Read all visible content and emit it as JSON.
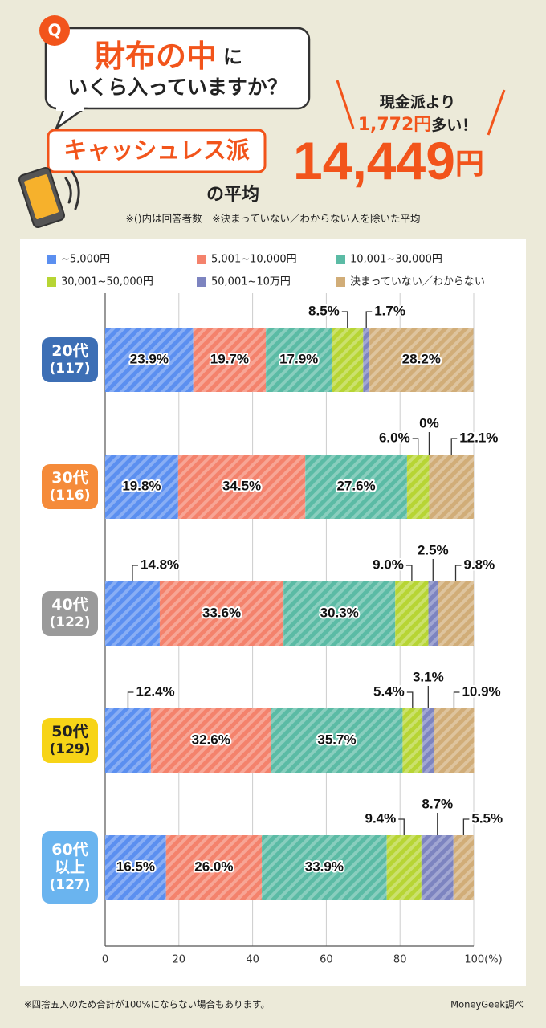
{
  "header": {
    "q": "Q",
    "question_highlight": "財布の中",
    "question_rest": "に",
    "question_line2": "いくら入っていますか？",
    "badge": "キャッシュレス派",
    "badge_sub": "の平均",
    "compare_line1": "現金派より",
    "compare_amount": "1,772円",
    "compare_rest": "多い！",
    "average": "14,449",
    "average_unit": "円",
    "note": "※()内は回答者数　※決まっていない／わからない人を除いた平均"
  },
  "chart_data": {
    "type": "stacked-bar-horizontal",
    "categories": [
      "20代",
      "30代",
      "40代",
      "50代",
      "60代以上"
    ],
    "respondents": [
      "(117)",
      "(116)",
      "(122)",
      "(129)",
      "(127)"
    ],
    "category_colors": [
      "#3d6fb5",
      "#f58b3a",
      "#9a9a9a",
      "#f7d417",
      "#6ab4ef"
    ],
    "series": [
      {
        "name": "~5,000円",
        "color": "#5b8ff0",
        "values": [
          23.9,
          19.8,
          14.8,
          12.4,
          16.5
        ],
        "value_labels": [
          "23.9%",
          "19.8%",
          "14.8%",
          "12.4%",
          "16.5%"
        ]
      },
      {
        "name": "5,001~10,000円",
        "color": "#f4826c",
        "values": [
          19.7,
          34.5,
          33.6,
          32.6,
          26.0
        ],
        "value_labels": [
          "19.7%",
          "34.5%",
          "33.6%",
          "32.6%",
          "26.0%"
        ]
      },
      {
        "name": "10,001~30,000円",
        "color": "#5bbba5",
        "values": [
          17.9,
          27.6,
          30.3,
          35.7,
          33.9
        ],
        "value_labels": [
          "17.9%",
          "27.6%",
          "30.3%",
          "35.7%",
          "33.9%"
        ]
      },
      {
        "name": "30,001~50,000円",
        "color": "#b7d534",
        "values": [
          8.5,
          6.0,
          9.0,
          5.4,
          9.4
        ],
        "value_labels": [
          "8.5%",
          "6.0%",
          "9.0%",
          "5.4%",
          "9.4%"
        ]
      },
      {
        "name": "50,001~10万円",
        "color": "#7d84c0",
        "values": [
          1.7,
          0,
          2.5,
          3.1,
          8.7
        ],
        "value_labels": [
          "1.7%",
          "0%",
          "2.5%",
          "3.1%",
          "8.7%"
        ]
      },
      {
        "name": "決まっていない／わからない",
        "color": "#d1ad78",
        "values": [
          28.2,
          12.1,
          9.8,
          10.9,
          5.5
        ],
        "value_labels": [
          "28.2%",
          "12.1%",
          "9.8%",
          "10.9%",
          "5.5%"
        ]
      }
    ],
    "xlim": [
      0,
      100
    ],
    "xticks": [
      0,
      20,
      40,
      60,
      80,
      {
        "value": 100,
        "label": "100(%)"
      }
    ],
    "grid": true
  },
  "footer": {
    "note": "※四捨五入のため合計が100%にならない場合もあります。",
    "source": "MoneyGeek調べ"
  }
}
